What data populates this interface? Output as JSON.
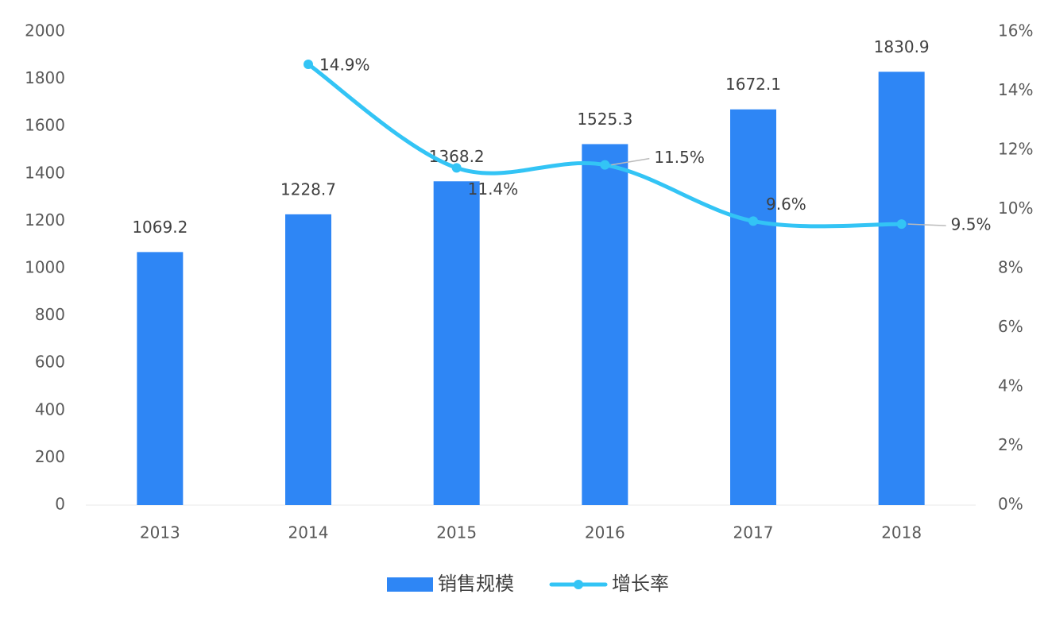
{
  "chart_data": {
    "type": "bar",
    "categories": [
      "2013",
      "2014",
      "2015",
      "2016",
      "2017",
      "2018"
    ],
    "series": [
      {
        "name": "销售规模",
        "type": "bar",
        "color": "#2e86f5",
        "values": [
          1069.2,
          1228.7,
          1368.2,
          1525.3,
          1672.1,
          1830.9
        ]
      },
      {
        "name": "增长率",
        "type": "line",
        "axis": "y2",
        "color": "#33c4f5",
        "values": [
          null,
          14.9,
          11.4,
          11.5,
          9.6,
          9.5
        ],
        "value_labels": [
          null,
          "14.9%",
          "11.4%",
          "11.5%",
          "9.6%",
          "9.5%"
        ]
      }
    ],
    "ylim": [
      0,
      2000
    ],
    "yticks": [
      0,
      200,
      400,
      600,
      800,
      1000,
      1200,
      1400,
      1600,
      1800,
      2000
    ],
    "y2lim": [
      0,
      16
    ],
    "y2ticks": [
      {
        "value": 0,
        "label": "0%"
      },
      {
        "value": 2,
        "label": "2%"
      },
      {
        "value": 4,
        "label": "4%"
      },
      {
        "value": 6,
        "label": "6%"
      },
      {
        "value": 8,
        "label": "8%"
      },
      {
        "value": 10,
        "label": "10%"
      },
      {
        "value": 12,
        "label": "12%"
      },
      {
        "value": 14,
        "label": "14%"
      },
      {
        "value": 16,
        "label": "16%"
      }
    ],
    "grid": false,
    "legend": "bottom"
  }
}
